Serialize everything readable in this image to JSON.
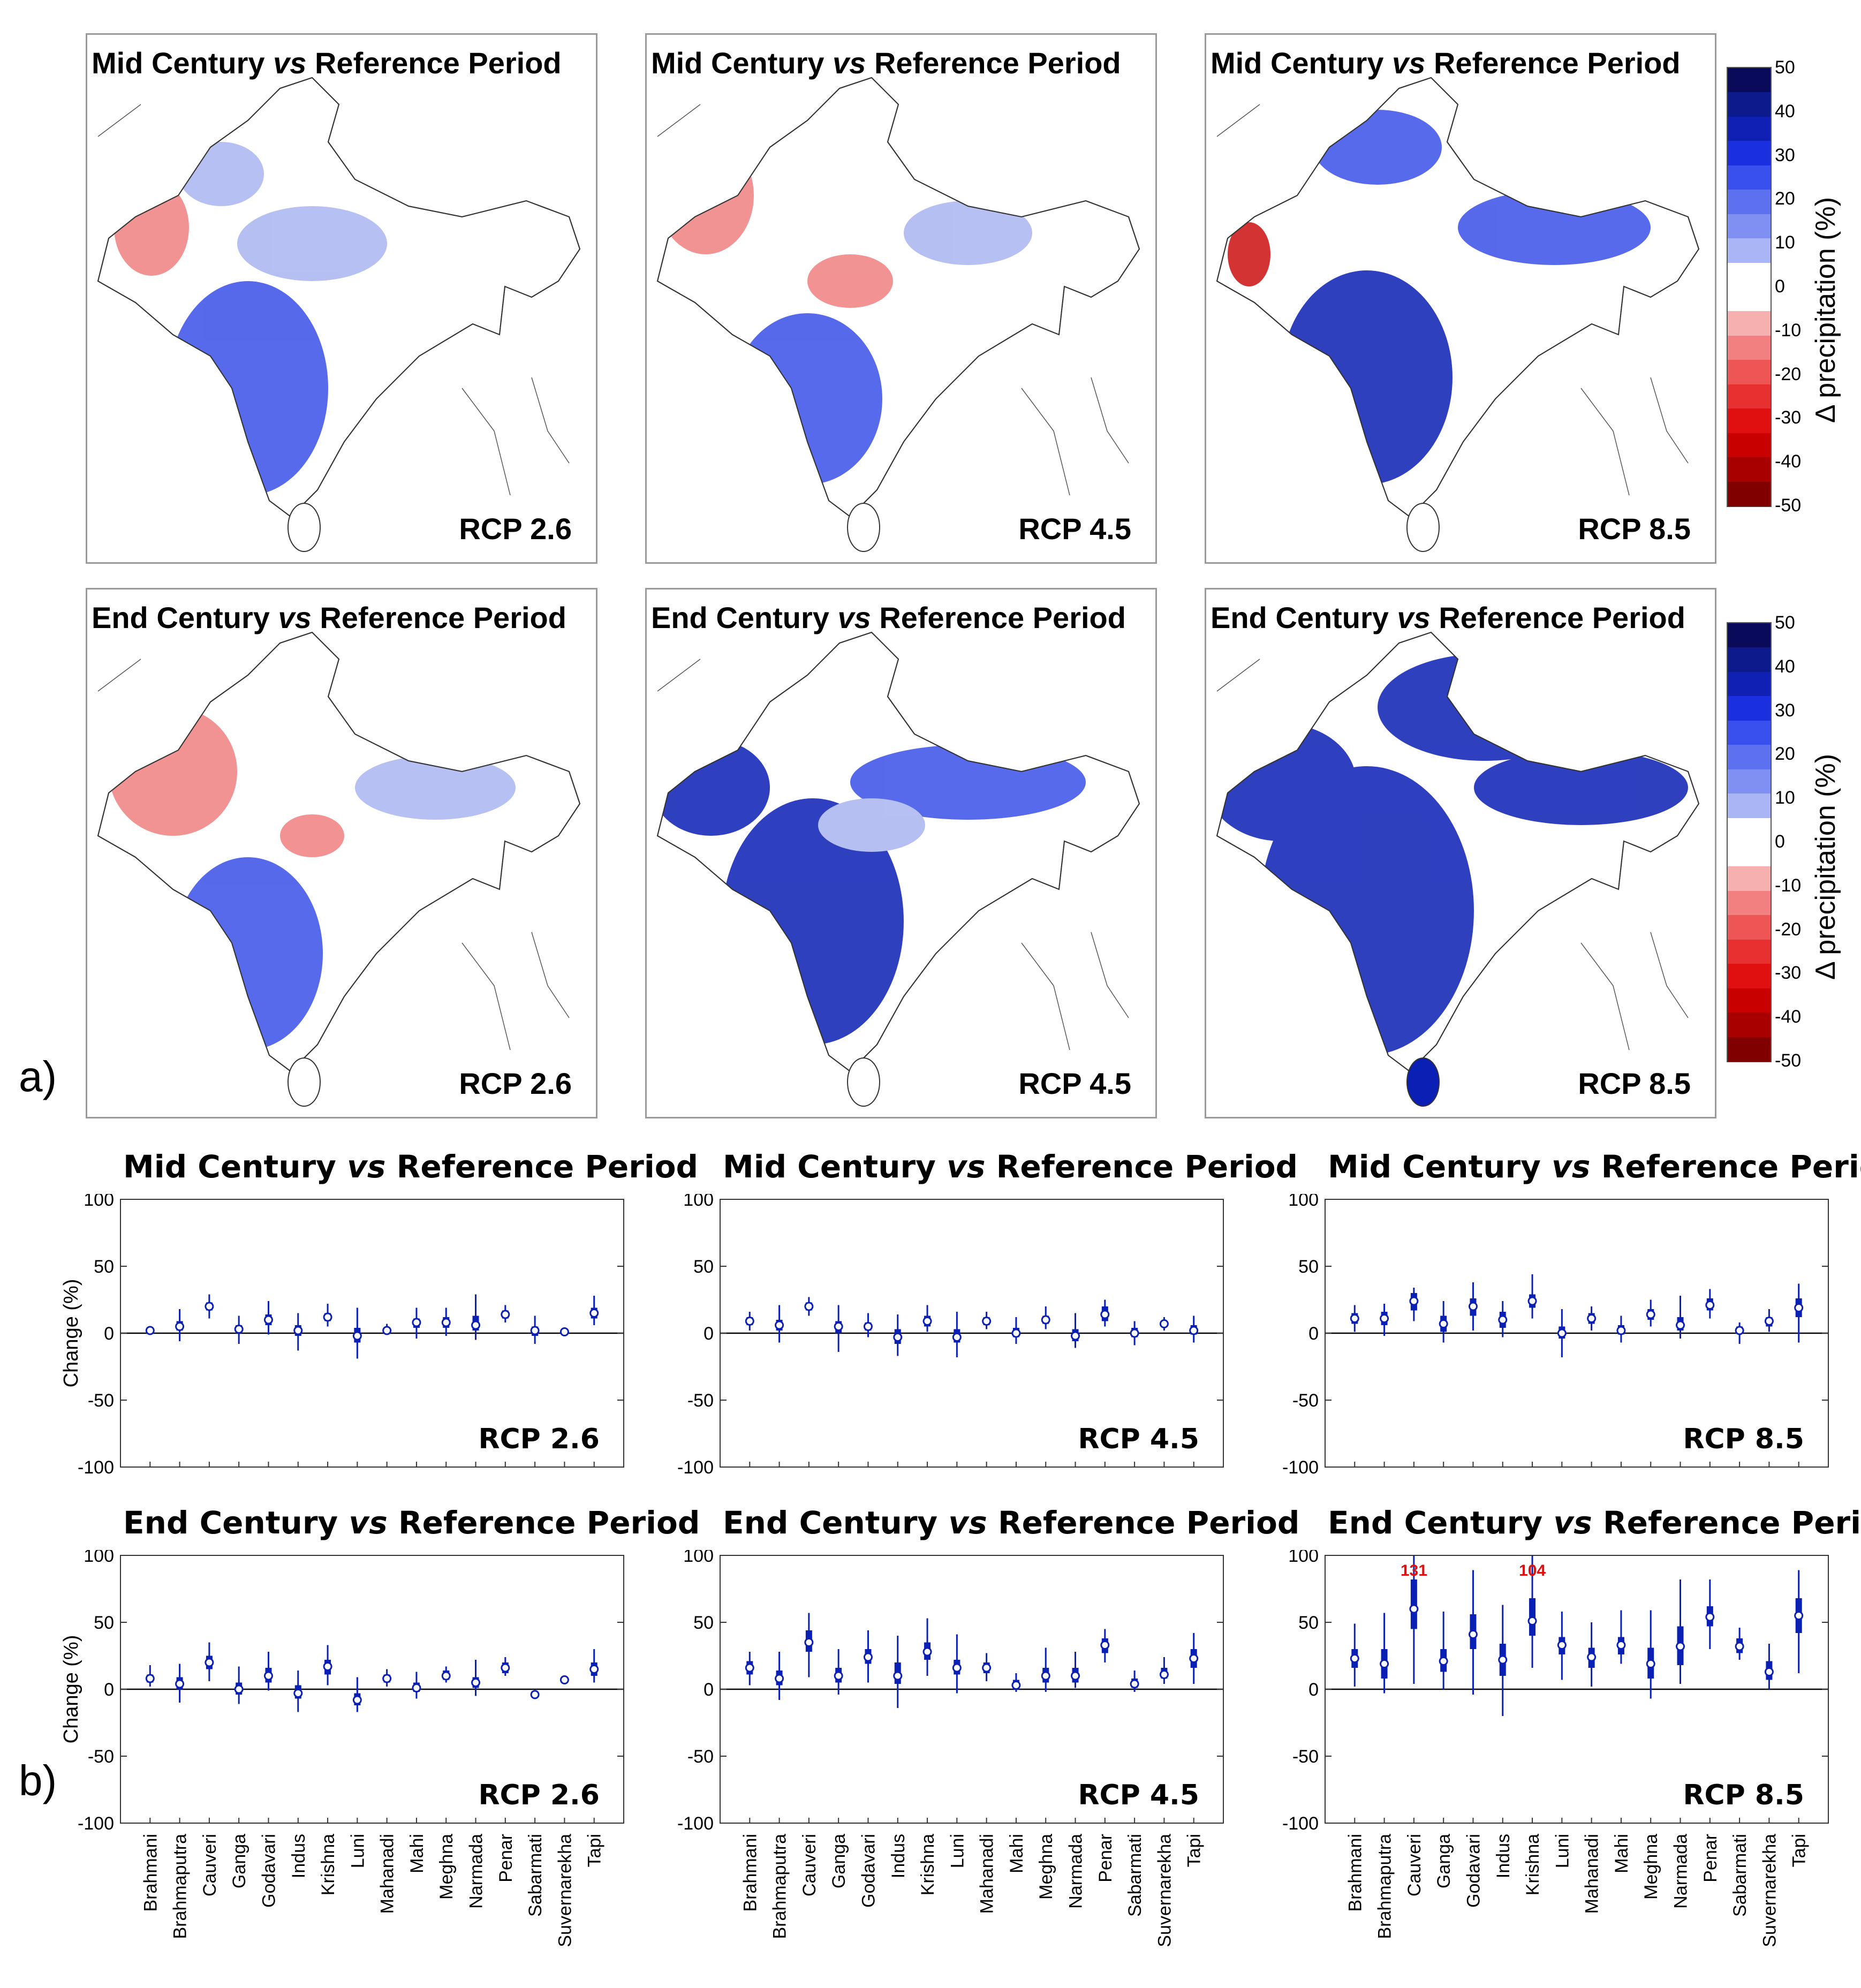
{
  "section_a_label": "a)",
  "section_b_label": "b)",
  "colors": {
    "blue_strong": "#0a1fb4",
    "blue_mid": "#3a50e8",
    "blue_light": "#aab5f0",
    "red_mid": "#f08080",
    "red_strong": "#cc1010"
  },
  "maps": [
    {
      "title_pre": "Mid Century ",
      "title_vs": "vs",
      "title_post": " Reference Period",
      "rcp": "RCP 2.6"
    },
    {
      "title_pre": "Mid Century ",
      "title_vs": "vs",
      "title_post": " Reference Period",
      "rcp": "RCP 4.5"
    },
    {
      "title_pre": "Mid Century ",
      "title_vs": "vs",
      "title_post": " Reference Period",
      "rcp": "RCP 8.5"
    },
    {
      "title_pre": "End Century ",
      "title_vs": "vs",
      "title_post": " Reference Period",
      "rcp": "RCP 2.6"
    },
    {
      "title_pre": "End Century ",
      "title_vs": "vs",
      "title_post": " Reference Period",
      "rcp": "RCP 4.5"
    },
    {
      "title_pre": "End Century ",
      "title_vs": "vs",
      "title_post": " Reference Period",
      "rcp": "RCP 8.5"
    }
  ],
  "colorbar": {
    "label": "Δ precipitation (%)",
    "ticks": [
      "50",
      "40",
      "30",
      "20",
      "10",
      "0",
      "-10",
      "-20",
      "-30",
      "-40",
      "-50"
    ],
    "colors": [
      "#0a0a5a",
      "#0d1a8c",
      "#1020b4",
      "#1a2fe0",
      "#3a50ee",
      "#5c70f0",
      "#8090f2",
      "#aab5f6",
      "#ffffff",
      "#ffffff",
      "#f6b0b0",
      "#f28080",
      "#ee5555",
      "#e83030",
      "#e01010",
      "#c80000",
      "#a80000",
      "#800000"
    ]
  },
  "chart_data": [
    {
      "type": "boxplot",
      "title_pre": "Mid Century ",
      "title_vs": "vs",
      "title_post": " Reference Period",
      "annotation": "RCP 2.6",
      "ylabel": "Change (%)",
      "ylim": [
        -100,
        100
      ],
      "yticks": [
        "100",
        "50",
        "0",
        "-50",
        "-100"
      ],
      "categories": [
        "Brahmani",
        "Brahmaputra",
        "Cauveri",
        "Ganga",
        "Godavari",
        "Indus",
        "Krishna",
        "Luni",
        "Mahanadi",
        "Mahi",
        "Meghna",
        "Narmada",
        "Penar",
        "Sabarmati",
        "Suvernarekha",
        "Tapi"
      ],
      "median": [
        2,
        5,
        20,
        3,
        10,
        2,
        12,
        -2,
        2,
        8,
        8,
        6,
        14,
        2,
        1,
        15
      ],
      "q1": [
        1,
        2,
        17,
        0,
        6,
        -2,
        9,
        -7,
        1,
        4,
        4,
        2,
        11,
        -2,
        0,
        11
      ],
      "q3": [
        3,
        9,
        23,
        6,
        14,
        6,
        15,
        4,
        4,
        11,
        12,
        13,
        17,
        5,
        2,
        19
      ],
      "wlow": [
        0,
        -6,
        11,
        -8,
        -1,
        -13,
        5,
        -19,
        -1,
        -4,
        -2,
        -5,
        8,
        -8,
        -2,
        6
      ],
      "whigh": [
        4,
        18,
        29,
        13,
        24,
        15,
        22,
        19,
        7,
        19,
        19,
        29,
        21,
        13,
        4,
        28
      ],
      "labels_shown": false,
      "red_annotations": []
    },
    {
      "type": "boxplot",
      "title_pre": "Mid Century ",
      "title_vs": "vs",
      "title_post": " Reference Period",
      "annotation": "RCP 4.5",
      "ylabel": "",
      "ylim": [
        -100,
        100
      ],
      "yticks": [
        "100",
        "50",
        "0",
        "-50",
        "-100"
      ],
      "categories": [
        "Brahmani",
        "Brahmaputra",
        "Cauveri",
        "Ganga",
        "Godavari",
        "Indus",
        "Krishna",
        "Luni",
        "Mahanadi",
        "Mahi",
        "Meghna",
        "Narmada",
        "Penar",
        "Sabarmati",
        "Suvernarekha",
        "Tapi"
      ],
      "median": [
        9,
        6,
        20,
        5,
        5,
        -3,
        9,
        -3,
        9,
        0,
        10,
        -2,
        14,
        0,
        7,
        2
      ],
      "q1": [
        6,
        2,
        17,
        0,
        2,
        -8,
        5,
        -7,
        6,
        -3,
        7,
        -6,
        9,
        -3,
        5,
        -1
      ],
      "q3": [
        12,
        10,
        23,
        9,
        8,
        3,
        13,
        3,
        12,
        4,
        13,
        3,
        20,
        4,
        9,
        6
      ],
      "wlow": [
        2,
        -7,
        13,
        -14,
        -3,
        -17,
        1,
        -18,
        3,
        -8,
        3,
        -11,
        5,
        -9,
        2,
        -7
      ],
      "whigh": [
        16,
        21,
        27,
        21,
        15,
        14,
        21,
        16,
        16,
        12,
        20,
        15,
        25,
        9,
        12,
        13
      ],
      "labels_shown": false,
      "red_annotations": []
    },
    {
      "type": "boxplot",
      "title_pre": "Mid Century ",
      "title_vs": "vs",
      "title_post": " Reference Period",
      "annotation": "RCP 8.5",
      "ylabel": "",
      "ylim": [
        -100,
        100
      ],
      "yticks": [
        "100",
        "50",
        "0",
        "-50",
        "-100"
      ],
      "categories": [
        "Brahmani",
        "Brahmaputra",
        "Cauveri",
        "Ganga",
        "Godavari",
        "Indus",
        "Krishna",
        "Luni",
        "Mahanadi",
        "Mahi",
        "Meghna",
        "Narmada",
        "Penar",
        "Sabarmati",
        "Suvernarekha",
        "Tapi"
      ],
      "median": [
        11,
        11,
        24,
        7,
        20,
        10,
        24,
        0,
        11,
        2,
        14,
        6,
        21,
        2,
        9,
        19
      ],
      "q1": [
        7,
        6,
        17,
        1,
        13,
        4,
        19,
        -4,
        7,
        -1,
        10,
        2,
        17,
        0,
        5,
        12
      ],
      "q3": [
        15,
        16,
        30,
        13,
        26,
        16,
        29,
        5,
        15,
        6,
        18,
        12,
        26,
        5,
        12,
        26
      ],
      "wlow": [
        1,
        -2,
        9,
        -7,
        2,
        -3,
        11,
        -18,
        2,
        -7,
        5,
        -4,
        11,
        -8,
        1,
        -7
      ],
      "whigh": [
        21,
        22,
        34,
        24,
        38,
        24,
        44,
        18,
        20,
        13,
        25,
        28,
        33,
        8,
        18,
        37
      ],
      "labels_shown": false,
      "red_annotations": []
    },
    {
      "type": "boxplot",
      "title_pre": "End Century ",
      "title_vs": "vs",
      "title_post": " Reference Period",
      "annotation": "RCP 2.6",
      "ylabel": "Change (%)",
      "ylim": [
        -100,
        100
      ],
      "yticks": [
        "100",
        "50",
        "0",
        "-50",
        "-100"
      ],
      "categories": [
        "Brahmani",
        "Brahmaputra",
        "Cauveri",
        "Ganga",
        "Godavari",
        "Indus",
        "Krishna",
        "Luni",
        "Mahanadi",
        "Mahi",
        "Meghna",
        "Narmada",
        "Penar",
        "Sabarmati",
        "Suvernarekha",
        "Tapi"
      ],
      "median": [
        8,
        4,
        20,
        0,
        10,
        -3,
        17,
        -8,
        8,
        1,
        10,
        5,
        16,
        -4,
        7,
        15
      ],
      "q1": [
        5,
        0,
        15,
        -4,
        5,
        -7,
        11,
        -12,
        5,
        -2,
        7,
        1,
        12,
        -6,
        5,
        10
      ],
      "q3": [
        11,
        9,
        25,
        5,
        16,
        3,
        22,
        -3,
        11,
        5,
        14,
        9,
        20,
        -2,
        9,
        20
      ],
      "wlow": [
        2,
        -10,
        6,
        -11,
        -1,
        -17,
        3,
        -17,
        2,
        -7,
        5,
        -5,
        10,
        -7,
        4,
        5
      ],
      "whigh": [
        18,
        19,
        35,
        17,
        28,
        14,
        33,
        9,
        15,
        13,
        17,
        22,
        24,
        -1,
        10,
        30
      ],
      "labels_shown": true,
      "red_annotations": []
    },
    {
      "type": "boxplot",
      "title_pre": "End Century ",
      "title_vs": "vs",
      "title_post": " Reference Period",
      "annotation": "RCP 4.5",
      "ylabel": "",
      "ylim": [
        -100,
        100
      ],
      "yticks": [
        "100",
        "50",
        "0",
        "-50",
        "-100"
      ],
      "categories": [
        "Brahmani",
        "Brahmaputra",
        "Cauveri",
        "Ganga",
        "Godavari",
        "Indus",
        "Krishna",
        "Luni",
        "Mahanadi",
        "Mahi",
        "Meghna",
        "Narmada",
        "Penar",
        "Sabarmati",
        "Suvernarekha",
        "Tapi"
      ],
      "median": [
        16,
        8,
        35,
        10,
        24,
        10,
        28,
        16,
        16,
        3,
        10,
        10,
        33,
        4,
        11,
        23
      ],
      "q1": [
        11,
        3,
        28,
        5,
        19,
        4,
        22,
        11,
        12,
        0,
        5,
        5,
        27,
        1,
        8,
        16
      ],
      "q3": [
        21,
        14,
        44,
        16,
        30,
        20,
        35,
        22,
        20,
        7,
        16,
        16,
        38,
        8,
        16,
        30
      ],
      "wlow": [
        3,
        -8,
        9,
        -4,
        5,
        -14,
        10,
        -3,
        6,
        -2,
        -2,
        1,
        20,
        -2,
        4,
        4
      ],
      "whigh": [
        28,
        28,
        57,
        30,
        44,
        40,
        53,
        41,
        27,
        12,
        31,
        28,
        45,
        14,
        24,
        42
      ],
      "labels_shown": true,
      "red_annotations": []
    },
    {
      "type": "boxplot",
      "title_pre": "End Century ",
      "title_vs": "vs",
      "title_post": " Reference Period",
      "annotation": "RCP 8.5",
      "ylabel": "",
      "ylim": [
        -100,
        100
      ],
      "yticks": [
        "100",
        "50",
        "0",
        "-50",
        "-100"
      ],
      "categories": [
        "Brahmani",
        "Brahmaputra",
        "Cauveri",
        "Ganga",
        "Godavari",
        "Indus",
        "Krishna",
        "Luni",
        "Mahanadi",
        "Mahi",
        "Meghna",
        "Narmada",
        "Penar",
        "Sabarmati",
        "Suvernarekha",
        "Tapi"
      ],
      "median": [
        23,
        19,
        60,
        21,
        41,
        22,
        51,
        33,
        24,
        33,
        19,
        32,
        54,
        32,
        13,
        55
      ],
      "q1": [
        16,
        8,
        45,
        13,
        30,
        10,
        40,
        26,
        16,
        26,
        8,
        18,
        47,
        27,
        7,
        42
      ],
      "q3": [
        30,
        30,
        82,
        30,
        56,
        34,
        68,
        39,
        31,
        39,
        31,
        47,
        62,
        38,
        21,
        68
      ],
      "wlow": [
        2,
        -3,
        4,
        0,
        -4,
        -20,
        16,
        7,
        2,
        19,
        -7,
        4,
        30,
        22,
        0,
        12
      ],
      "whigh": [
        49,
        57,
        100,
        58,
        89,
        63,
        100,
        58,
        50,
        59,
        59,
        82,
        82,
        46,
        34,
        89
      ],
      "labels_shown": true,
      "red_annotations": [
        {
          "index": 2,
          "text": "131"
        },
        {
          "index": 6,
          "text": "104"
        }
      ]
    }
  ]
}
